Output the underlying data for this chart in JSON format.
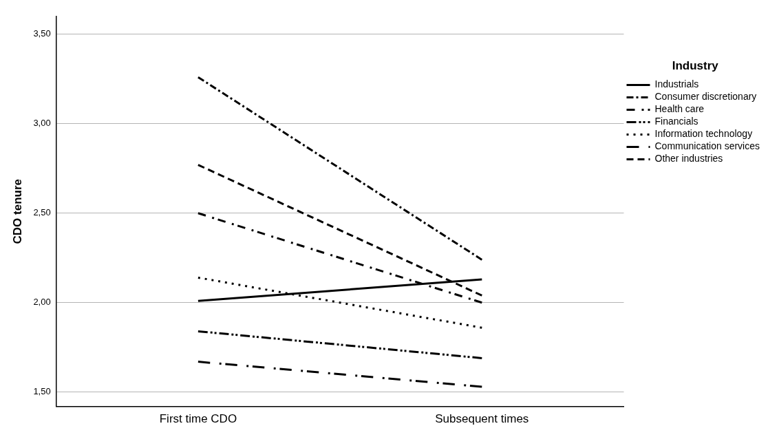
{
  "chart_data": {
    "type": "line",
    "ylabel": "CDO tenure",
    "legend_title": "Industry",
    "legend": "top right",
    "grid": "y",
    "marker": "none",
    "categories": [
      "First time CDO",
      "Subsequent times"
    ],
    "ylim": [
      1.42,
      3.6
    ],
    "yticks": [
      {
        "value": 1.5,
        "label": "1,50"
      },
      {
        "value": 2,
        "label": "2,00"
      },
      {
        "value": 2.5,
        "label": "2,50"
      },
      {
        "value": 3,
        "label": "3,00"
      },
      {
        "value": 3.5,
        "label": "3,50"
      }
    ],
    "series": [
      {
        "name": "Industrials",
        "color": "#000000",
        "line_style": "solid",
        "values": [
          2.01,
          2.13
        ]
      },
      {
        "name": "Consumer discretionary",
        "color": "#000000",
        "line_style": "dashdot",
        "values": [
          3.26,
          2.24
        ]
      },
      {
        "name": "Health care",
        "color": "#000000",
        "line_style": "dashgapdot",
        "values": [
          2.5,
          2.0
        ]
      },
      {
        "name": "Financials",
        "color": "#000000",
        "line_style": "dashdotdot",
        "values": [
          1.84,
          1.69
        ]
      },
      {
        "name": "Information technology",
        "color": "#000000",
        "line_style": "dotted",
        "values": [
          2.14,
          1.86
        ]
      },
      {
        "name": "Communication services",
        "color": "#000000",
        "line_style": "longdashdot",
        "values": [
          1.67,
          1.53
        ]
      },
      {
        "name": "Other industries",
        "color": "#000000",
        "line_style": "dashed",
        "values": [
          2.77,
          2.04
        ]
      }
    ]
  }
}
